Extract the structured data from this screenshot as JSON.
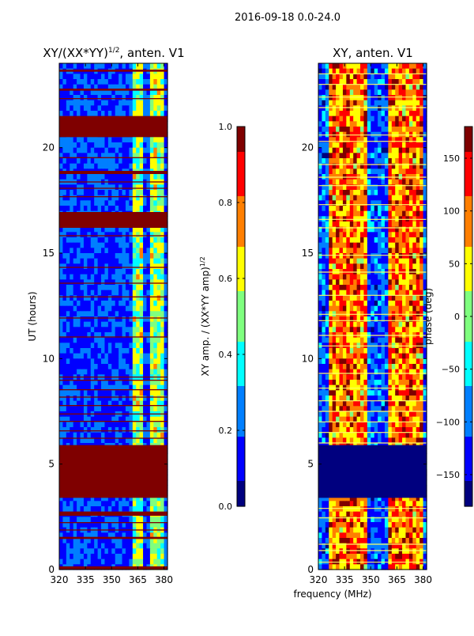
{
  "suptitle": "2016-09-18 0.0-24.0",
  "colors": {
    "jet_stops": [
      "#00007f",
      "#0000ff",
      "#007fff",
      "#00ffff",
      "#7fff7f",
      "#ffff00",
      "#ff7f00",
      "#ff0000",
      "#7f0000"
    ],
    "frame": "#000000",
    "hline": "#ffff66"
  },
  "chart_data": [
    {
      "type": "heatmap",
      "title_main": "XY/(XX*YY)",
      "title_sup": "1/2",
      "title_tail": ", anten. V1",
      "xlabel": "",
      "ylabel": "UT (hours)",
      "x_ticks": [
        320,
        335,
        350,
        365,
        380
      ],
      "x_tick_labels": [
        "320",
        "335",
        "350",
        "365",
        "380"
      ],
      "xlim": [
        320,
        382
      ],
      "y_ticks": [
        0,
        5,
        10,
        15,
        20
      ],
      "y_tick_labels": [
        "0",
        "5",
        "10",
        "15",
        "20"
      ],
      "ylim": [
        0,
        24
      ],
      "flagged_bands_hours": [
        [
          0.0,
          0.15
        ],
        [
          1.45,
          1.55
        ],
        [
          1.85,
          1.9
        ],
        [
          2.2,
          2.25
        ],
        [
          2.55,
          2.75
        ],
        [
          3.4,
          5.9
        ],
        [
          6.2,
          6.25
        ],
        [
          6.55,
          6.6
        ],
        [
          7.0,
          7.05
        ],
        [
          7.35,
          7.4
        ],
        [
          7.75,
          7.8
        ],
        [
          8.15,
          8.2
        ],
        [
          8.5,
          8.55
        ],
        [
          8.95,
          9.0
        ],
        [
          9.1,
          9.15
        ],
        [
          11.0,
          11.05
        ],
        [
          11.9,
          11.95
        ],
        [
          12.9,
          12.95
        ],
        [
          13.55,
          13.6
        ],
        [
          14.3,
          14.35
        ],
        [
          15.8,
          15.85
        ],
        [
          16.2,
          16.95
        ],
        [
          17.65,
          17.7
        ],
        [
          18.05,
          18.1
        ],
        [
          18.35,
          18.4
        ],
        [
          18.75,
          18.9
        ],
        [
          19.5,
          19.55
        ],
        [
          20.5,
          21.5
        ],
        [
          22.3,
          22.35
        ],
        [
          22.7,
          22.8
        ],
        [
          23.6,
          23.7
        ]
      ],
      "bright_band_hours": [
        [
          14.95,
          15.1
        ]
      ],
      "bright_channels_mhz": [
        [
          362,
          368
        ],
        [
          372,
          380
        ]
      ],
      "background_value": 0.15,
      "channel_value": 0.55,
      "colorbar": {
        "label_main": "XY amp. / (XX*YY amp)",
        "label_sup": "1/2",
        "ticks": [
          0.0,
          0.2,
          0.4,
          0.6,
          0.8,
          1.0
        ],
        "tick_labels": [
          "0.0",
          "0.2",
          "0.4",
          "0.6",
          "0.8",
          "1.0"
        ],
        "range": [
          0.0,
          1.0
        ]
      }
    },
    {
      "type": "heatmap",
      "title_main": "XY, anten. V1",
      "title_sup": "",
      "title_tail": "",
      "xlabel": "frequency (MHz)",
      "ylabel": "",
      "x_ticks": [
        320,
        335,
        350,
        365,
        380
      ],
      "x_tick_labels": [
        "320",
        "335",
        "350",
        "365",
        "380"
      ],
      "xlim": [
        320,
        382
      ],
      "y_ticks": [
        0,
        5,
        10,
        15,
        20
      ],
      "y_tick_labels": [
        "0",
        "5",
        "10",
        "15",
        "20"
      ],
      "ylim": [
        0,
        24
      ],
      "flagged_bands_hours": [
        [
          3.4,
          5.9
        ]
      ],
      "highlight_lines_hours": [
        0.35,
        0.9,
        1.2,
        2.45,
        2.9,
        6.0,
        6.5,
        7.0,
        7.5,
        8.0,
        8.6,
        9.3,
        10.6,
        11.1,
        11.8,
        12.1,
        13.0,
        14.1,
        14.9,
        16.2,
        16.6,
        17.3,
        18.2,
        18.6,
        19.2,
        20.3,
        20.6,
        21.9,
        22.4,
        23.0,
        23.5
      ],
      "hot_channels_mhz": [
        [
          327,
          348
        ],
        [
          360,
          380
        ]
      ],
      "colorbar": {
        "label_main": "phase (deg)",
        "label_sup": "",
        "ticks": [
          -150,
          -100,
          -50,
          0,
          50,
          100,
          150
        ],
        "tick_labels": [
          "−150",
          "−100",
          "−50",
          "0",
          "50",
          "100",
          "150"
        ],
        "range": [
          -180,
          180
        ]
      }
    }
  ]
}
